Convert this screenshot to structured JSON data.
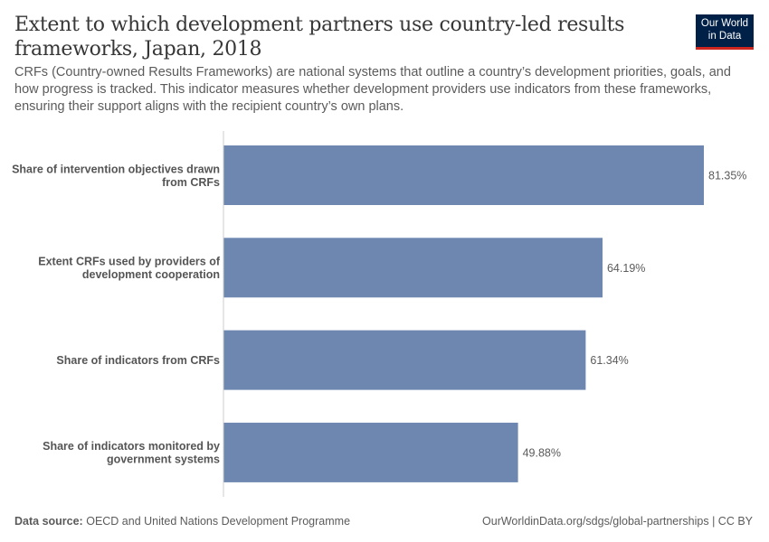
{
  "header": {
    "title": "Extent to which development partners use country-led results frameworks, Japan, 2018",
    "subtitle": "CRFs (Country-owned Results Frameworks) are national systems that outline a country’s development priorities, goals, and how progress is tracked. This indicator measures whether development providers use indicators from these frameworks, ensuring their support aligns with the recipient country’s own plans.",
    "logo": {
      "line1": "Our World",
      "line2": "in Data"
    }
  },
  "chart_data": {
    "type": "bar",
    "orientation": "horizontal",
    "categories": [
      [
        "Share of intervention objectives drawn",
        "from CRFs"
      ],
      [
        "Extent CRFs used by providers of",
        "development cooperation"
      ],
      [
        "Share of indicators from CRFs"
      ],
      [
        "Share of indicators monitored by",
        "government systems"
      ]
    ],
    "values": [
      81.35,
      64.19,
      61.34,
      49.88
    ],
    "value_labels": [
      "81.35%",
      "64.19%",
      "61.34%",
      "49.88%"
    ],
    "bar_color": "#6d87b0",
    "grid": false
  },
  "footer": {
    "source_label": "Data source:",
    "source": "OECD and United Nations Development Programme",
    "url": "OurWorldinData.org/sdgs/global-partnerships | CC BY"
  }
}
